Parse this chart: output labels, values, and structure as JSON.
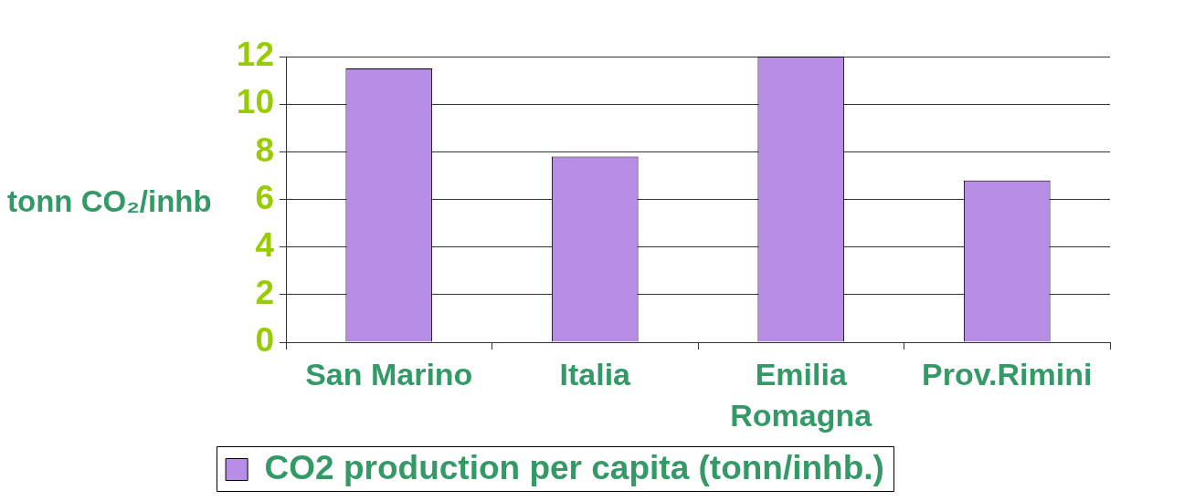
{
  "chart_data": {
    "type": "bar",
    "categories": [
      "San Marino",
      "Italia",
      "Emilia Romagna",
      "Prov.Rimini"
    ],
    "series": [
      {
        "name": "CO2 production per capita (tonn/inhb.)",
        "color": "#b88de6",
        "values": [
          11.5,
          7.8,
          12.0,
          6.8
        ]
      }
    ],
    "ylabel": "tonn CO₂/inhb",
    "ylim": [
      0,
      12
    ],
    "yticks": [
      0,
      2,
      4,
      6,
      8,
      10,
      12
    ],
    "grid": "y",
    "legend": "bottom"
  }
}
